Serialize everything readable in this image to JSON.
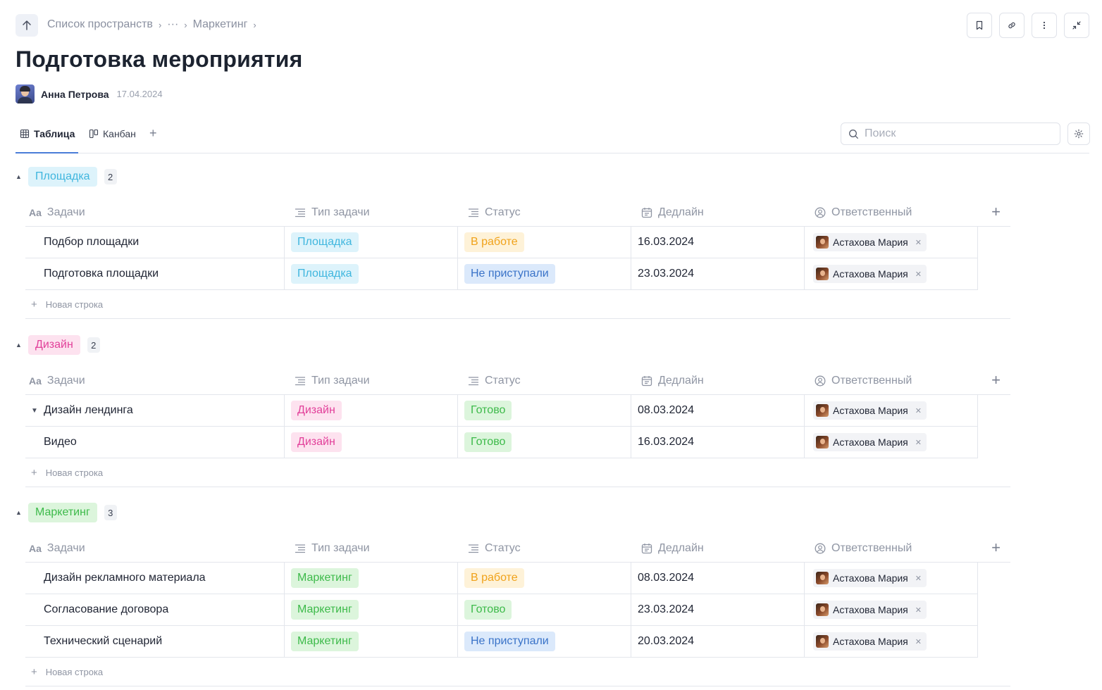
{
  "breadcrumb": {
    "items": [
      "Список пространств",
      "···",
      "Маркетинг"
    ]
  },
  "page": {
    "title": "Подготовка мероприятия"
  },
  "author": {
    "name": "Анна Петрова",
    "date": "17.04.2024"
  },
  "views": {
    "tabs": [
      {
        "label": "Таблица",
        "icon": "table-icon",
        "active": true
      },
      {
        "label": "Канбан",
        "icon": "kanban-icon",
        "active": false
      }
    ]
  },
  "search": {
    "placeholder": "Поиск",
    "value": ""
  },
  "columns": {
    "name": "Задачи",
    "type": "Тип задачи",
    "status": "Статус",
    "deadline": "Дедлайн",
    "assignee": "Ответственный"
  },
  "new_row_label": "Новая строка",
  "colors": {
    "venue": "#3fb6de",
    "design": "#e2409a",
    "marketing": "#3dba4a",
    "in_progress": "#f0a21a",
    "not_started": "#3a73c8",
    "done": "#3dba4a",
    "accent": "#4a7dd8"
  },
  "groups": [
    {
      "label": "Площадка",
      "count": "2",
      "rows": [
        {
          "name": "Подбор площадки",
          "type": "Площадка",
          "status": "В работе",
          "deadline": "16.03.2024",
          "assignee": "Астахова Мария"
        },
        {
          "name": "Подготовка площадки",
          "type": "Площадка",
          "status": "Не приступали",
          "deadline": "23.03.2024",
          "assignee": "Астахова Мария"
        }
      ]
    },
    {
      "label": "Дизайн",
      "count": "2",
      "rows": [
        {
          "name": "Дизайн лендинга",
          "type": "Дизайн",
          "status": "Готово",
          "deadline": "08.03.2024",
          "assignee": "Астахова Мария"
        },
        {
          "name": "Видео",
          "type": "Дизайн",
          "status": "Готово",
          "deadline": "16.03.2024",
          "assignee": "Астахова Мария"
        }
      ]
    },
    {
      "label": "Маркетинг",
      "count": "3",
      "rows": [
        {
          "name": "Дизайн рекламного материала",
          "type": "Маркетинг",
          "status": "В работе",
          "deadline": "08.03.2024",
          "assignee": "Астахова Мария"
        },
        {
          "name": "Согласование договора",
          "type": "Маркетинг",
          "status": "Готово",
          "deadline": "23.03.2024",
          "assignee": "Астахова Мария"
        },
        {
          "name": "Технический сценарий",
          "type": "Маркетинг",
          "status": "Не приступали",
          "deadline": "20.03.2024",
          "assignee": "Астахова Мария"
        }
      ]
    }
  ]
}
